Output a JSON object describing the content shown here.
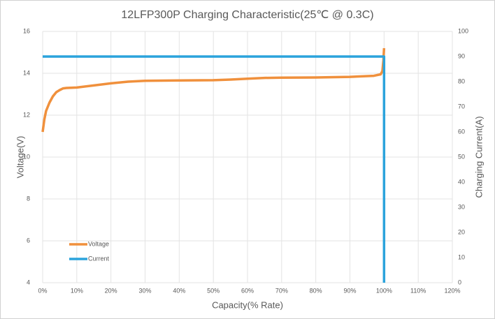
{
  "chart_data": {
    "type": "line",
    "title": "12LFP300P Charging  Characteristic(25℃ @ 0.3C)",
    "x_label": "Capacity(% Rate)",
    "y_label": "Voltage(V)",
    "y2_label": "Charging Current(A)",
    "xlim": [
      0,
      120
    ],
    "xticks": [
      {
        "value": 0,
        "label": "0%"
      },
      {
        "value": 10,
        "label": "10%"
      },
      {
        "value": 20,
        "label": "20%"
      },
      {
        "value": 30,
        "label": "30%"
      },
      {
        "value": 40,
        "label": "40%"
      },
      {
        "value": 50,
        "label": "50%"
      },
      {
        "value": 60,
        "label": "60%"
      },
      {
        "value": 70,
        "label": "70%"
      },
      {
        "value": 80,
        "label": "80%"
      },
      {
        "value": 90,
        "label": "90%"
      },
      {
        "value": 100,
        "label": "100%"
      },
      {
        "value": 110,
        "label": "110%"
      },
      {
        "value": 120,
        "label": "120%"
      }
    ],
    "ylim": [
      4,
      16
    ],
    "yticks": [
      4,
      6,
      8,
      10,
      12,
      14,
      16
    ],
    "y2lim": [
      0,
      100
    ],
    "y2ticks": [
      0,
      10,
      20,
      30,
      40,
      50,
      60,
      70,
      80,
      90,
      100
    ],
    "grid": true,
    "legend": "lower left",
    "series": [
      {
        "name": "Voltage",
        "color": "#f0903c",
        "x": [
          0,
          0.5,
          1,
          2,
          3,
          4,
          5,
          6,
          7,
          10,
          15,
          20,
          25,
          30,
          40,
          50,
          55,
          60,
          65,
          70,
          80,
          90,
          97,
          99,
          99.5,
          99.8,
          100
        ],
        "values": [
          11.2,
          11.8,
          12.2,
          12.6,
          12.9,
          13.1,
          13.2,
          13.28,
          13.3,
          13.32,
          13.42,
          13.52,
          13.6,
          13.64,
          13.66,
          13.67,
          13.7,
          13.74,
          13.78,
          13.79,
          13.8,
          13.83,
          13.88,
          13.95,
          14.1,
          14.6,
          15.2
        ]
      },
      {
        "name": "Current",
        "color": "#2ba3dc",
        "axis": "y2",
        "x": [
          0,
          100,
          100
        ],
        "values": [
          90,
          90,
          0
        ]
      }
    ]
  }
}
